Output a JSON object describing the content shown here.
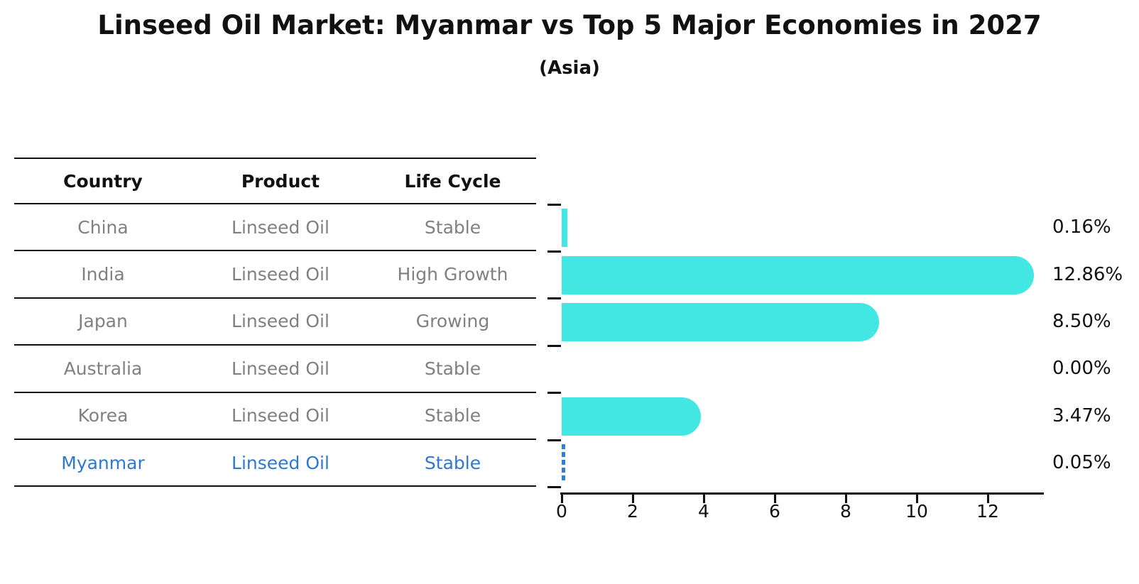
{
  "title": "Linseed Oil Market: Myanmar vs Top 5 Major Economies in 2027",
  "subtitle": "(Asia)",
  "table": {
    "headers": [
      "Country",
      "Product",
      "Life Cycle"
    ],
    "rows": [
      {
        "country": "China",
        "product": "Linseed Oil",
        "life_cycle": "Stable",
        "highlight": false
      },
      {
        "country": "India",
        "product": "Linseed Oil",
        "life_cycle": "High Growth",
        "highlight": false
      },
      {
        "country": "Japan",
        "product": "Linseed Oil",
        "life_cycle": "Growing",
        "highlight": false
      },
      {
        "country": "Australia",
        "product": "Linseed Oil",
        "life_cycle": "Stable",
        "highlight": false
      },
      {
        "country": "Korea",
        "product": "Linseed Oil",
        "life_cycle": "Stable",
        "highlight": false
      },
      {
        "country": "Myanmar",
        "product": "Linseed Oil",
        "life_cycle": "Stable",
        "highlight": true
      }
    ]
  },
  "chart_data": {
    "type": "bar",
    "orientation": "horizontal",
    "title": "Linseed Oil Market: Myanmar vs Top 5 Major Economies in 2027",
    "subtitle": "(Asia)",
    "categories": [
      "China",
      "India",
      "Japan",
      "Australia",
      "Korea",
      "Myanmar"
    ],
    "values": [
      0.16,
      12.86,
      8.5,
      0.0,
      3.47,
      0.05
    ],
    "value_labels": [
      "0.16%",
      "12.86%",
      "8.50%",
      "0.00%",
      "3.47%",
      "0.05%"
    ],
    "x_ticks": [
      0,
      2,
      4,
      6,
      8,
      10,
      12
    ],
    "xlim": [
      0,
      13.58
    ],
    "grid": false,
    "legend": "none",
    "bar_color": "#42E6E2",
    "highlight_color": "#2E78D2",
    "highlight_index": 5
  }
}
